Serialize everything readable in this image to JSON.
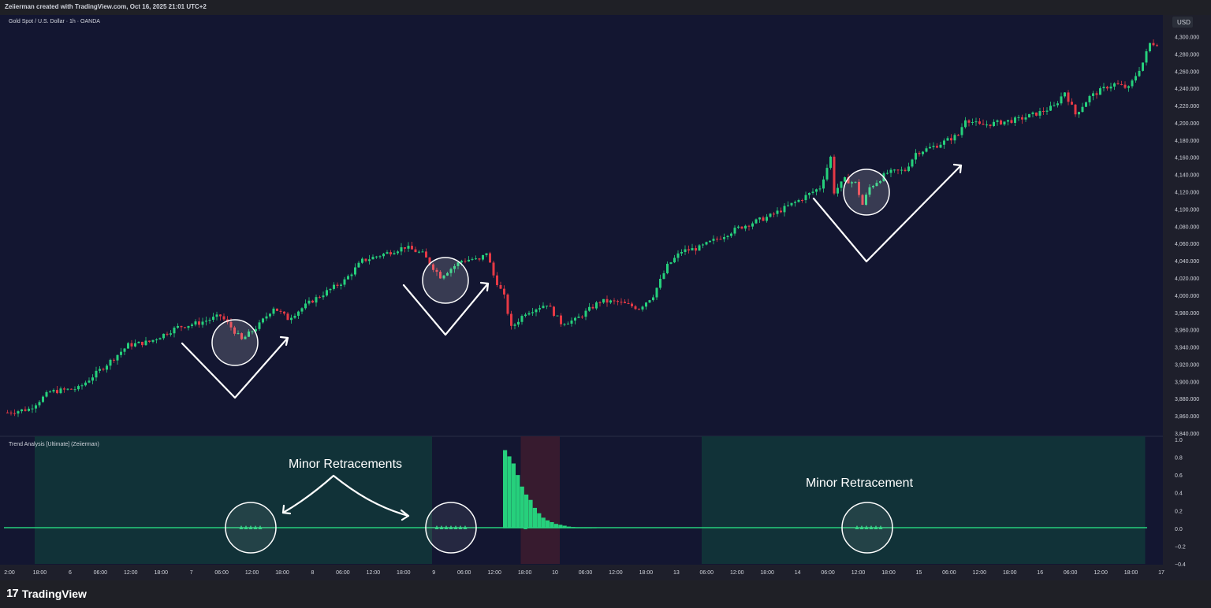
{
  "header": {
    "attribution": "Zeiierman created with TradingView.com, Oct 16, 2025 21:01 UTC+2"
  },
  "footer": {
    "logo_mark": "17",
    "logo_text": "TradingView"
  },
  "colors": {
    "background": "#131631",
    "up": "#26d07c",
    "down": "#e53945",
    "panel_green": "#113238",
    "panel_red": "#371b2f",
    "axis_text": "#d1d4dc",
    "annotation": "#ffffff"
  },
  "chart_data": [
    {
      "type": "candlestick",
      "title": "Gold Spot / U.S. Dollar · 1h · OANDA",
      "currency": "USD",
      "ylim": [
        3840,
        4305
      ],
      "yticks": [
        "4,300.000",
        "4,280.000",
        "4,260.000",
        "4,240.000",
        "4,220.000",
        "4,200.000",
        "4,180.000",
        "4,160.000",
        "4,140.000",
        "4,120.000",
        "4,100.000",
        "4,080.000",
        "4,060.000",
        "4,040.000",
        "4,020.000",
        "4,000.000",
        "3,980.000",
        "3,960.000",
        "3,940.000",
        "3,920.000",
        "3,900.000",
        "3,880.000",
        "3,860.000",
        "3,840.000"
      ],
      "price_path": [
        [
          0,
          3864
        ],
        [
          6,
          3868
        ],
        [
          12,
          3888
        ],
        [
          20,
          3892
        ],
        [
          28,
          3920
        ],
        [
          34,
          3942
        ],
        [
          40,
          3946
        ],
        [
          48,
          3963
        ],
        [
          54,
          3968
        ],
        [
          60,
          3976
        ],
        [
          63,
          3963
        ],
        [
          66,
          3948
        ],
        [
          71,
          3966
        ],
        [
          75,
          3986
        ],
        [
          79,
          3973
        ],
        [
          86,
          3994
        ],
        [
          95,
          4017
        ],
        [
          100,
          4040
        ],
        [
          107,
          4049
        ],
        [
          112,
          4056
        ],
        [
          117,
          4048
        ],
        [
          120,
          4032
        ],
        [
          122,
          4022
        ],
        [
          125,
          4031
        ],
        [
          128,
          4040
        ],
        [
          131,
          4042
        ],
        [
          133,
          4040
        ],
        [
          135,
          4050
        ],
        [
          137,
          4023
        ],
        [
          140,
          3998
        ],
        [
          142,
          3962
        ],
        [
          146,
          3980
        ],
        [
          152,
          3990
        ],
        [
          156,
          3968
        ],
        [
          160,
          3971
        ],
        [
          167,
          3993
        ],
        [
          172,
          3992
        ],
        [
          178,
          3985
        ],
        [
          182,
          4000
        ],
        [
          186,
          4034
        ],
        [
          190,
          4051
        ],
        [
          195,
          4055
        ],
        [
          206,
          4078
        ],
        [
          215,
          4092
        ],
        [
          223,
          4110
        ],
        [
          229,
          4125
        ],
        [
          232,
          4160
        ],
        [
          233,
          4120
        ],
        [
          236,
          4134
        ],
        [
          239,
          4130
        ],
        [
          241,
          4105
        ],
        [
          243,
          4125
        ],
        [
          248,
          4142
        ],
        [
          253,
          4145
        ],
        [
          256,
          4165
        ],
        [
          262,
          4174
        ],
        [
          268,
          4186
        ],
        [
          270,
          4205
        ],
        [
          274,
          4197
        ],
        [
          279,
          4200
        ],
        [
          285,
          4204
        ],
        [
          291,
          4212
        ],
        [
          295,
          4219
        ],
        [
          298,
          4236
        ],
        [
          301,
          4210
        ],
        [
          305,
          4230
        ],
        [
          310,
          4242
        ],
        [
          312,
          4245
        ],
        [
          316,
          4240
        ],
        [
          320,
          4270
        ],
        [
          322,
          4292
        ],
        [
          324,
          4292
        ]
      ],
      "xticks": [
        "2:00",
        "18:00",
        "6",
        "06:00",
        "12:00",
        "18:00",
        "7",
        "06:00",
        "12:00",
        "18:00",
        "8",
        "06:00",
        "12:00",
        "18:00",
        "9",
        "06:00",
        "12:00",
        "18:00",
        "10",
        "06:00",
        "12:00",
        "18:00",
        "13",
        "06:00",
        "12:00",
        "18:00",
        "14",
        "06:00",
        "12:00",
        "18:00",
        "15",
        "06:00",
        "12:00",
        "18:00",
        "16",
        "06:00",
        "12:00",
        "18:00",
        "17"
      ]
    },
    {
      "type": "bar",
      "title": "Trend Analysis [Ultimate] (Zeiierman)",
      "ylim": [
        -0.4,
        1.0
      ],
      "yticks": [
        "1.0",
        "0.8",
        "0.6",
        "0.4",
        "0.2",
        "0.0",
        "−0.2",
        "−0.4"
      ],
      "spike_start_index": 140,
      "values": [
        0.88,
        0.81,
        0.73,
        0.6,
        0.47,
        0.38,
        0.32,
        0.23,
        0.17,
        0.12,
        0.09,
        0.07,
        0.05,
        0.04,
        0.03,
        0.02,
        0.015,
        0.01,
        0.007,
        0.005,
        0.003,
        0.002
      ],
      "background_regions": [
        {
          "from": 8,
          "to": 120,
          "color": "green"
        },
        {
          "from": 145,
          "to": 156,
          "color": "red"
        },
        {
          "from": 196,
          "to": 321,
          "color": "green"
        }
      ]
    }
  ],
  "annotations": {
    "minor_retracements": "Minor Retracements",
    "minor_retracement": "Minor Retracement"
  }
}
